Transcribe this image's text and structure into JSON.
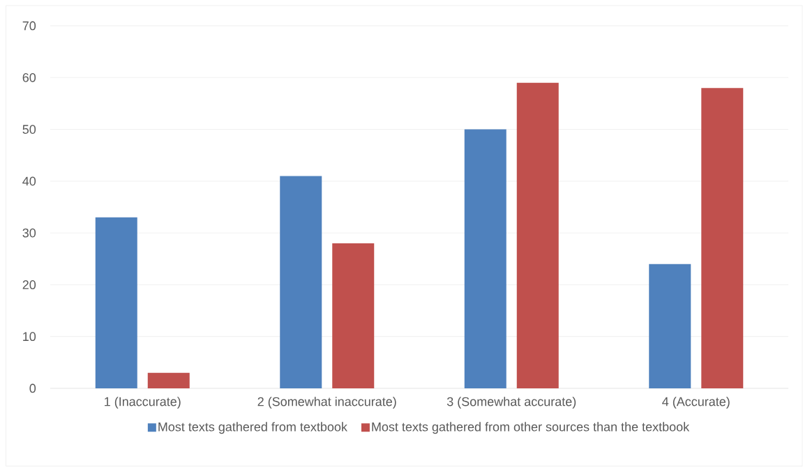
{
  "chart_data": {
    "type": "bar",
    "categories": [
      "1 (Inaccurate)",
      "2  (Somewhat inaccurate)",
      "3 (Somewhat accurate)",
      "4 (Accurate)"
    ],
    "series": [
      {
        "name": "Most texts gathered from textbook",
        "color": "#4f81bd",
        "values": [
          33,
          41,
          50,
          24
        ]
      },
      {
        "name": "Most texts gathered from other sources than the textbook",
        "color": "#c0504d",
        "values": [
          3,
          28,
          59,
          58
        ]
      }
    ],
    "ylim": [
      0,
      70
    ],
    "yticks": [
      0,
      10,
      20,
      30,
      40,
      50,
      60,
      70
    ],
    "grid": "y",
    "legend": "bottom"
  }
}
